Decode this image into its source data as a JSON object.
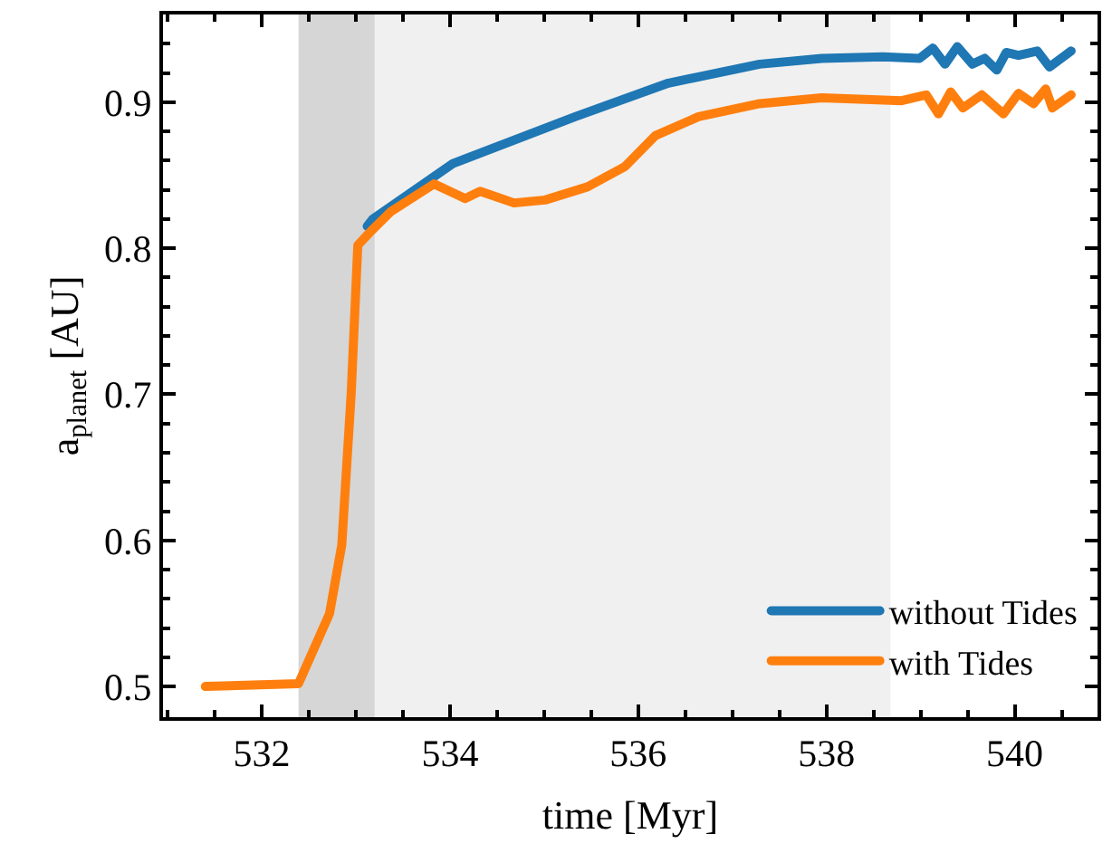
{
  "chart_data": {
    "type": "line",
    "xlabel": "time [Myr]",
    "ylabel": "a$_{planet}$ [AU]",
    "xlim": [
      530.95,
      540.88
    ],
    "xticks": [
      532,
      534,
      536,
      538,
      540
    ],
    "ylim": [
      0.479,
      0.96
    ],
    "yticks": [
      0.5,
      0.6,
      0.7,
      0.8,
      0.9
    ],
    "grid": false,
    "legend": "bottom right",
    "line_style": "solid",
    "marker": "none",
    "bands": [
      {
        "axis": "x",
        "from": 532.39,
        "to": 533.2,
        "color": "#d6d6d6"
      },
      {
        "axis": "x",
        "from": 533.2,
        "to": 538.68,
        "color": "#f0f0f0"
      }
    ],
    "series": [
      {
        "name": "without Tides",
        "color": "#1f77b4",
        "x": [
          533.12,
          533.18,
          534.03,
          535.33,
          536.32,
          537.29,
          537.95,
          538.6,
          538.99,
          539.13,
          539.26,
          539.39,
          539.55,
          539.68,
          539.81,
          539.91,
          540.04,
          540.24,
          540.37,
          540.6
        ],
        "values": [
          0.815,
          0.82,
          0.858,
          0.89,
          0.913,
          0.926,
          0.93,
          0.931,
          0.93,
          0.937,
          0.926,
          0.938,
          0.926,
          0.93,
          0.922,
          0.934,
          0.932,
          0.935,
          0.924,
          0.935
        ]
      },
      {
        "name": "with Tides",
        "color": "#ff7f0e",
        "x": [
          531.4,
          532.39,
          532.72,
          532.85,
          532.95,
          533.02,
          533.15,
          533.37,
          533.83,
          534.16,
          534.32,
          534.68,
          535.01,
          535.46,
          535.86,
          536.18,
          536.64,
          537.29,
          537.95,
          538.8,
          539.06,
          539.19,
          539.32,
          539.45,
          539.65,
          539.88,
          540.04,
          540.2,
          540.33,
          540.4,
          540.6
        ],
        "values": [
          0.5,
          0.502,
          0.55,
          0.597,
          0.701,
          0.802,
          0.811,
          0.825,
          0.844,
          0.834,
          0.839,
          0.831,
          0.833,
          0.842,
          0.856,
          0.877,
          0.89,
          0.899,
          0.903,
          0.901,
          0.905,
          0.892,
          0.907,
          0.896,
          0.905,
          0.892,
          0.906,
          0.899,
          0.909,
          0.896,
          0.905
        ]
      }
    ]
  }
}
